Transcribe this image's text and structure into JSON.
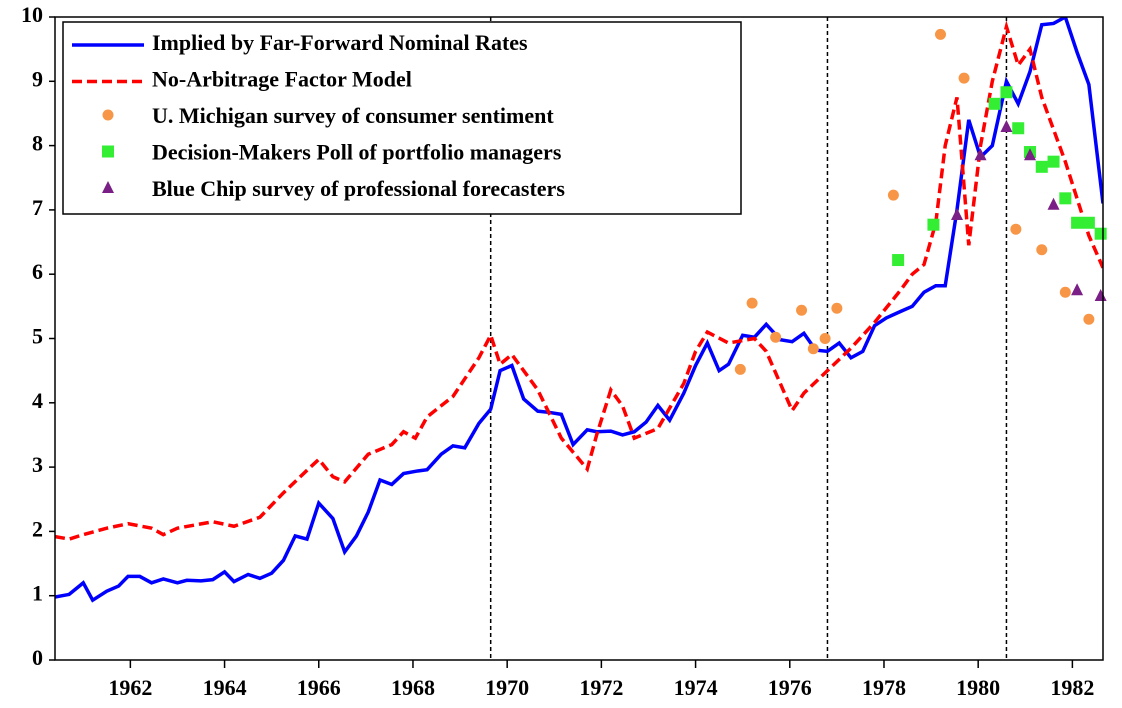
{
  "chart_data": {
    "type": "line",
    "xlim": [
      1960.4,
      1982.65
    ],
    "ylim": [
      0,
      10
    ],
    "yticks": [
      0,
      1,
      2,
      3,
      4,
      5,
      6,
      7,
      8,
      9,
      10
    ],
    "xticks": [
      1962,
      1964,
      1966,
      1968,
      1970,
      1972,
      1974,
      1976,
      1978,
      1980,
      1982
    ],
    "vlines": [
      1969.65,
      1976.8,
      1980.6
    ],
    "legend": "top-left",
    "series": [
      {
        "name": "Implied by Far-Forward Nominal Rates",
        "style": "line",
        "color": "#0000ff",
        "x": [
          1960.4,
          1960.7,
          1961.0,
          1961.2,
          1961.5,
          1961.75,
          1961.95,
          1962.2,
          1962.45,
          1962.7,
          1963.0,
          1963.2,
          1963.5,
          1963.75,
          1964.0,
          1964.2,
          1964.5,
          1964.75,
          1965.0,
          1965.25,
          1965.5,
          1965.75,
          1966.0,
          1966.3,
          1966.55,
          1966.8,
          1967.05,
          1967.3,
          1967.55,
          1967.8,
          1968.1,
          1968.3,
          1968.6,
          1968.85,
          1969.1,
          1969.4,
          1969.65,
          1969.85,
          1970.1,
          1970.35,
          1970.65,
          1970.9,
          1971.15,
          1971.4,
          1971.7,
          1971.9,
          1972.2,
          1972.45,
          1972.7,
          1972.95,
          1973.2,
          1973.45,
          1973.75,
          1974.0,
          1974.25,
          1974.5,
          1974.7,
          1975.0,
          1975.25,
          1975.5,
          1975.8,
          1976.05,
          1976.3,
          1976.55,
          1976.8,
          1977.05,
          1977.3,
          1977.55,
          1977.8,
          1978.05,
          1978.35,
          1978.6,
          1978.85,
          1979.1,
          1979.3,
          1979.55,
          1979.8,
          1980.05,
          1980.3,
          1980.6,
          1980.85,
          1981.1,
          1981.35,
          1981.6,
          1981.85,
          1982.1,
          1982.35,
          1982.65
        ],
        "values": [
          0.98,
          1.02,
          1.2,
          0.93,
          1.07,
          1.15,
          1.3,
          1.3,
          1.2,
          1.26,
          1.2,
          1.24,
          1.23,
          1.25,
          1.37,
          1.22,
          1.33,
          1.27,
          1.35,
          1.55,
          1.93,
          1.88,
          2.44,
          2.2,
          1.68,
          1.93,
          2.3,
          2.8,
          2.73,
          2.9,
          2.94,
          2.96,
          3.2,
          3.33,
          3.3,
          3.68,
          3.9,
          4.5,
          4.58,
          4.06,
          3.87,
          3.85,
          3.82,
          3.35,
          3.58,
          3.55,
          3.56,
          3.5,
          3.55,
          3.7,
          3.96,
          3.73,
          4.15,
          4.58,
          4.93,
          4.5,
          4.6,
          5.05,
          5.02,
          5.22,
          4.98,
          4.95,
          5.08,
          4.82,
          4.8,
          4.93,
          4.7,
          4.8,
          5.2,
          5.32,
          5.42,
          5.5,
          5.72,
          5.82,
          5.82,
          7.0,
          8.4,
          7.82,
          8.0,
          9.0,
          8.65,
          9.15,
          9.88,
          9.9,
          10.0,
          9.45,
          8.95,
          7.1
        ]
      },
      {
        "name": "No-Arbitrage Factor Model",
        "style": "dashed",
        "color": "#ff0000",
        "x": [
          1960.4,
          1960.7,
          1961.0,
          1961.5,
          1961.95,
          1962.45,
          1962.7,
          1963.0,
          1963.75,
          1964.2,
          1964.75,
          1965.25,
          1965.75,
          1966.0,
          1966.3,
          1966.55,
          1967.05,
          1967.55,
          1967.8,
          1968.05,
          1968.3,
          1968.85,
          1969.4,
          1969.65,
          1969.85,
          1970.1,
          1970.65,
          1971.15,
          1971.7,
          1971.9,
          1972.2,
          1972.45,
          1972.7,
          1973.2,
          1973.75,
          1974.0,
          1974.25,
          1974.7,
          1975.25,
          1975.5,
          1976.05,
          1976.3,
          1976.8,
          1977.3,
          1977.8,
          1978.35,
          1978.6,
          1978.85,
          1979.1,
          1979.3,
          1979.55,
          1979.8,
          1980.05,
          1980.3,
          1980.6,
          1980.85,
          1981.1,
          1981.35,
          1981.85,
          1982.35,
          1982.65
        ],
        "values": [
          1.92,
          1.88,
          1.95,
          2.05,
          2.12,
          2.05,
          1.95,
          2.05,
          2.15,
          2.08,
          2.22,
          2.6,
          2.95,
          3.12,
          2.85,
          2.77,
          3.2,
          3.35,
          3.55,
          3.45,
          3.78,
          4.1,
          4.7,
          5.05,
          4.6,
          4.75,
          4.2,
          3.45,
          2.97,
          3.5,
          4.2,
          3.95,
          3.45,
          3.6,
          4.3,
          4.8,
          5.1,
          4.93,
          5.0,
          4.8,
          3.88,
          4.15,
          4.5,
          4.85,
          5.25,
          5.75,
          6.0,
          6.15,
          6.8,
          8.0,
          8.75,
          6.45,
          8.0,
          9.0,
          9.85,
          9.25,
          9.5,
          8.75,
          7.75,
          6.6,
          6.1
        ]
      },
      {
        "name": "U. Michigan survey of consumer sentiment",
        "style": "circle",
        "color": "#f79646",
        "x": [
          1974.95,
          1975.2,
          1975.7,
          1976.25,
          1976.5,
          1976.75,
          1977.0,
          1978.2,
          1979.2,
          1979.7,
          1980.8,
          1981.35,
          1981.85,
          1982.35
        ],
        "values": [
          4.52,
          5.55,
          5.02,
          5.44,
          4.84,
          5.0,
          5.47,
          7.23,
          9.73,
          9.05,
          6.7,
          6.38,
          5.72,
          5.3
        ]
      },
      {
        "name": "Decision-Makers Poll of portfolio managers",
        "style": "square",
        "color": "#33ee33",
        "x": [
          1978.3,
          1979.05,
          1980.35,
          1980.6,
          1980.85,
          1981.1,
          1981.35,
          1981.6,
          1981.85,
          1982.1,
          1982.35,
          1982.6
        ],
        "values": [
          6.22,
          6.77,
          8.65,
          8.83,
          8.27,
          7.9,
          7.67,
          7.75,
          7.18,
          6.8,
          6.8,
          6.63
        ]
      },
      {
        "name": "Blue Chip survey of professional forecasters",
        "style": "triangle",
        "color": "#7a1f85",
        "x": [
          1979.55,
          1980.05,
          1980.6,
          1981.1,
          1981.6,
          1982.1,
          1982.6
        ],
        "values": [
          6.92,
          7.85,
          8.29,
          7.85,
          7.08,
          5.75,
          5.66
        ]
      }
    ]
  }
}
